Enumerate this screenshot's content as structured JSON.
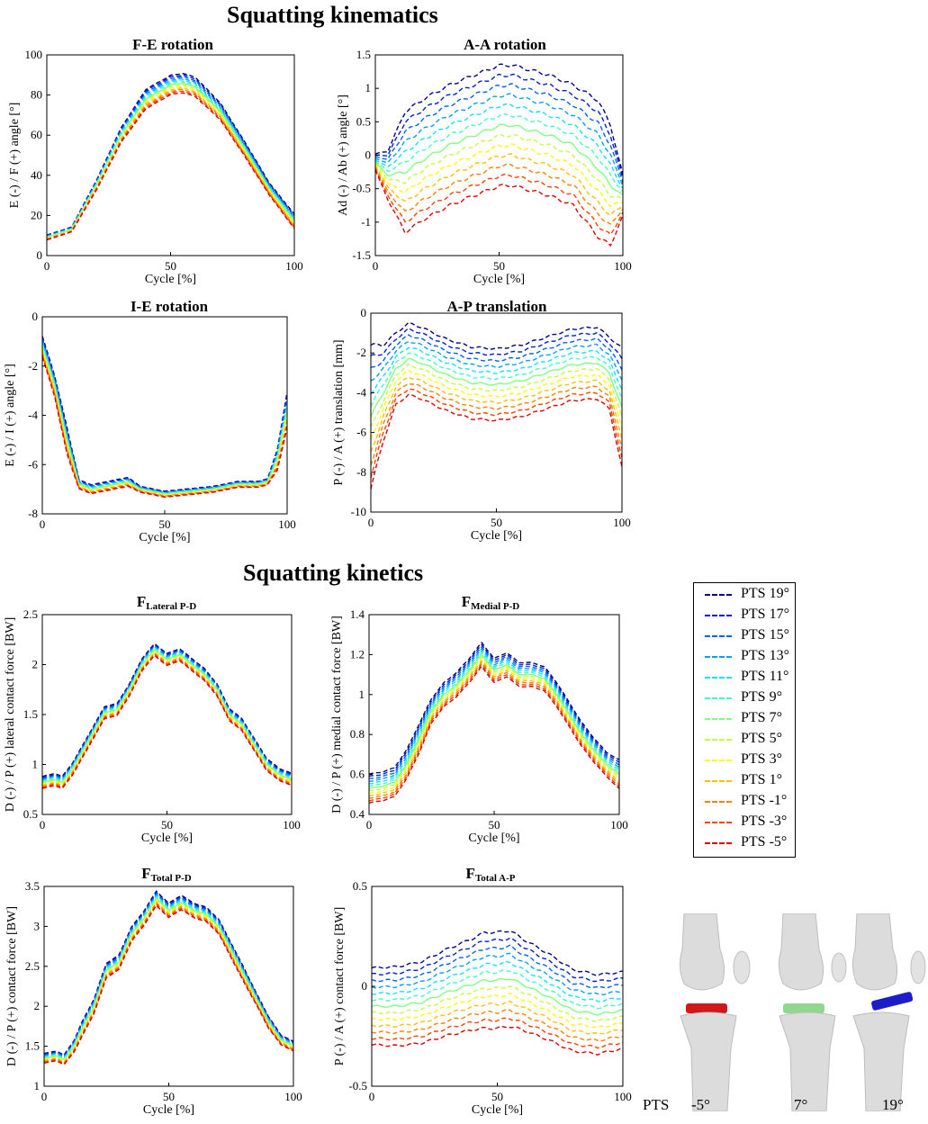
{
  "figure": {
    "kinematics_title": "Squatting kinematics",
    "kinetics_title": "Squatting kinetics"
  },
  "legend": {
    "entries": [
      {
        "label": "PTS 19°",
        "color": "#00008f"
      },
      {
        "label": "PTS 17°",
        "color": "#0020d0"
      },
      {
        "label": "PTS 15°",
        "color": "#0060ff"
      },
      {
        "label": "PTS 13°",
        "color": "#00a0ff"
      },
      {
        "label": "PTS 11°",
        "color": "#10e0ff"
      },
      {
        "label": "PTS 9°",
        "color": "#40ffc0"
      },
      {
        "label": "PTS 7°",
        "color": "#80ff80"
      },
      {
        "label": "PTS 5°",
        "color": "#c0ff40"
      },
      {
        "label": "PTS 3°",
        "color": "#ffff00"
      },
      {
        "label": "PTS 1°",
        "color": "#ffc000"
      },
      {
        "label": "PTS -1°",
        "color": "#ff8000"
      },
      {
        "label": "PTS -3°",
        "color": "#ff4000"
      },
      {
        "label": "PTS -5°",
        "color": "#e00000"
      }
    ]
  },
  "knees": {
    "pts_label": "PTS",
    "items": [
      {
        "angle": "-5°",
        "insert_color": "#d01818"
      },
      {
        "angle": "7°",
        "insert_color": "#90d890"
      },
      {
        "angle": "19°",
        "insert_color": "#1c1cc8"
      }
    ]
  },
  "chart_data": [
    {
      "id": "fe",
      "type": "line",
      "title": "F-E rotation",
      "xlabel": "Cycle [%]",
      "ylabel": "E (-) / F (+) angle [°]",
      "xlim": [
        0,
        100
      ],
      "ylim": [
        0,
        100
      ],
      "xticks": [
        0,
        50,
        100
      ],
      "yticks": [
        0,
        20,
        40,
        60,
        80,
        100
      ],
      "line_style": "dashed",
      "reference_series": "PTS 7° (solid)",
      "x": [
        0,
        10,
        20,
        30,
        40,
        50,
        55,
        60,
        70,
        80,
        90,
        100
      ],
      "base": [
        9,
        13,
        35,
        60,
        78,
        85,
        86,
        84,
        72,
        53,
        33,
        17
      ],
      "spread": [
        0.2,
        0.2,
        0.4,
        0.6,
        0.8,
        0.8,
        0.8,
        0.8,
        0.7,
        0.6,
        0.5,
        0.6
      ]
    },
    {
      "id": "aa",
      "type": "line",
      "title": "A-A rotation",
      "xlabel": "Cycle [%]",
      "ylabel": "Ad (-) / Ab (+) angle [°]",
      "xlim": [
        0,
        100
      ],
      "ylim": [
        -1.5,
        1.5
      ],
      "xticks": [
        0,
        50,
        100
      ],
      "yticks": [
        -1.5,
        -1,
        -0.5,
        0,
        0.5,
        1,
        1.5
      ],
      "line_style": "dashed",
      "reference_series": "PTS 7° (solid)",
      "x": [
        0,
        5,
        12,
        20,
        30,
        40,
        50,
        55,
        60,
        70,
        80,
        90,
        95,
        100
      ],
      "base": [
        -0.1,
        -0.3,
        -0.25,
        -0.05,
        0.15,
        0.3,
        0.44,
        0.45,
        0.4,
        0.3,
        0.15,
        -0.2,
        -0.45,
        -0.6
      ],
      "spread": [
        0.02,
        0.06,
        0.15,
        0.15,
        0.15,
        0.15,
        0.15,
        0.15,
        0.15,
        0.15,
        0.15,
        0.17,
        0.15,
        0.05
      ]
    },
    {
      "id": "ie",
      "type": "line",
      "title": "I-E rotation",
      "xlabel": "Cycle [%]",
      "ylabel": "E (-) / I (+) angle [°]",
      "xlim": [
        0,
        100
      ],
      "ylim": [
        -8,
        0
      ],
      "xticks": [
        0,
        50,
        100
      ],
      "yticks": [
        -8,
        -6,
        -4,
        -2,
        0
      ],
      "line_style": "dashed",
      "reference_series": "PTS 7° (solid)",
      "x": [
        0,
        5,
        10,
        15,
        20,
        30,
        35,
        40,
        50,
        60,
        70,
        80,
        88,
        92,
        96,
        100
      ],
      "base": [
        -1.2,
        -2.8,
        -5,
        -6.8,
        -7.0,
        -6.8,
        -6.7,
        -7.0,
        -7.2,
        -7.1,
        -7.0,
        -6.8,
        -6.8,
        -6.7,
        -5.8,
        -3.8
      ],
      "spread": [
        0.07,
        0.07,
        0.09,
        0.03,
        0.03,
        0.03,
        0.03,
        0.02,
        0.02,
        0.02,
        0.02,
        0.02,
        0.02,
        0.02,
        0.07,
        0.12
      ]
    },
    {
      "id": "ap",
      "type": "line",
      "title": "A-P translation",
      "xlabel": "Cycle [%]",
      "ylabel": "P (-) / A (+) translation [mm]",
      "xlim": [
        0,
        100
      ],
      "ylim": [
        -10,
        0
      ],
      "xticks": [
        0,
        50,
        100
      ],
      "yticks": [
        -10,
        -8,
        -6,
        -4,
        -2,
        0
      ],
      "line_style": "dashed",
      "reference_series": "PTS 7° (solid)",
      "x": [
        0,
        5,
        10,
        15,
        20,
        30,
        40,
        50,
        60,
        70,
        80,
        90,
        95,
        100
      ],
      "base": [
        -5.2,
        -4.0,
        -2.8,
        -2.3,
        -2.5,
        -3.1,
        -3.5,
        -3.6,
        -3.4,
        -3.0,
        -2.6,
        -2.5,
        -3.0,
        -4.8
      ],
      "spread": [
        0.6,
        0.4,
        0.3,
        0.3,
        0.3,
        0.3,
        0.3,
        0.3,
        0.3,
        0.3,
        0.3,
        0.3,
        0.3,
        0.5
      ]
    },
    {
      "id": "flat",
      "type": "line",
      "title": "F",
      "title_sub": "Lateral P-D",
      "xlabel": "Cycle [%]",
      "ylabel": "D (-) / P (+) lateral contact force [BW]",
      "xlim": [
        0,
        100
      ],
      "ylim": [
        0.5,
        2.5
      ],
      "xticks": [
        0,
        50,
        100
      ],
      "yticks": [
        0.5,
        1,
        1.5,
        2,
        2.5
      ],
      "line_style": "dashed",
      "reference_series": "PTS 7° (solid)",
      "x": [
        0,
        5,
        8,
        12,
        15,
        20,
        25,
        30,
        35,
        40,
        45,
        50,
        55,
        60,
        65,
        70,
        75,
        80,
        85,
        90,
        95,
        100
      ],
      "base": [
        0.82,
        0.85,
        0.82,
        0.95,
        1.08,
        1.3,
        1.52,
        1.55,
        1.75,
        2.0,
        2.15,
        2.05,
        2.1,
        2.0,
        1.9,
        1.75,
        1.5,
        1.4,
        1.2,
        1.0,
        0.9,
        0.85
      ],
      "spread": [
        0.01,
        0.01,
        0.01,
        0.01,
        0.01,
        0.01,
        0.01,
        0.01,
        0.01,
        0.01,
        0.01,
        0.01,
        0.01,
        0.01,
        0.01,
        0.01,
        0.01,
        0.01,
        0.01,
        0.01,
        0.01,
        0.01
      ]
    },
    {
      "id": "fmed",
      "type": "line",
      "title": "F",
      "title_sub": "Medial P-D",
      "xlabel": "Cycle [%]",
      "ylabel": "D (-) / P (+) medial contact force [BW]",
      "xlim": [
        0,
        100
      ],
      "ylim": [
        0.4,
        1.4
      ],
      "xticks": [
        0,
        50,
        100
      ],
      "yticks": [
        0.4,
        0.6,
        0.8,
        1,
        1.2,
        1.4
      ],
      "line_style": "dashed",
      "reference_series": "PTS 7° (solid)",
      "x": [
        0,
        5,
        10,
        15,
        20,
        25,
        30,
        35,
        40,
        45,
        50,
        55,
        60,
        65,
        70,
        75,
        80,
        85,
        90,
        95,
        100
      ],
      "base": [
        0.53,
        0.54,
        0.56,
        0.65,
        0.78,
        0.92,
        1.0,
        1.05,
        1.12,
        1.2,
        1.12,
        1.15,
        1.1,
        1.1,
        1.08,
        1.0,
        0.9,
        0.8,
        0.72,
        0.65,
        0.6
      ],
      "spread": [
        0.012,
        0.012,
        0.012,
        0.012,
        0.012,
        0.01,
        0.01,
        0.01,
        0.01,
        0.01,
        0.01,
        0.01,
        0.01,
        0.01,
        0.01,
        0.01,
        0.01,
        0.01,
        0.01,
        0.01,
        0.012
      ]
    },
    {
      "id": "ftot",
      "type": "line",
      "title": "F",
      "title_sub": "Total P-D",
      "xlabel": "Cycle [%]",
      "ylabel": "D (-) / P (+) contact force [BW]",
      "xlim": [
        0,
        100
      ],
      "ylim": [
        1,
        3.5
      ],
      "xticks": [
        0,
        50,
        100
      ],
      "yticks": [
        1,
        1.5,
        2,
        2.5,
        3,
        3.5
      ],
      "line_style": "dashed",
      "reference_series": "PTS 7° (solid)",
      "x": [
        0,
        5,
        8,
        12,
        15,
        20,
        25,
        30,
        35,
        40,
        45,
        50,
        55,
        60,
        65,
        70,
        75,
        80,
        85,
        90,
        95,
        100
      ],
      "base": [
        1.35,
        1.38,
        1.33,
        1.5,
        1.7,
        2.0,
        2.45,
        2.55,
        2.9,
        3.1,
        3.35,
        3.2,
        3.3,
        3.2,
        3.15,
        3.0,
        2.7,
        2.4,
        2.1,
        1.8,
        1.58,
        1.5
      ],
      "spread": [
        0.01,
        0.01,
        0.01,
        0.012,
        0.015,
        0.015,
        0.015,
        0.015,
        0.015,
        0.015,
        0.015,
        0.015,
        0.015,
        0.015,
        0.015,
        0.015,
        0.015,
        0.015,
        0.012,
        0.012,
        0.01,
        0.01
      ]
    },
    {
      "id": "fap",
      "type": "line",
      "title": "F",
      "title_sub": "Total A-P",
      "xlabel": "Cycle [%]",
      "ylabel": "P (-) / A (+) contact force [BW]",
      "xlim": [
        0,
        100
      ],
      "ylim": [
        -0.5,
        0.5
      ],
      "xticks": [
        0,
        50,
        100
      ],
      "yticks": [
        -0.5,
        0,
        0.5
      ],
      "line_style": "dashed",
      "reference_series": "PTS 7° (solid)",
      "x": [
        0,
        10,
        20,
        30,
        40,
        45,
        50,
        55,
        60,
        70,
        80,
        90,
        100
      ],
      "base": [
        -0.1,
        -0.1,
        -0.08,
        -0.03,
        0.01,
        0.03,
        0.03,
        0.04,
        0.01,
        -0.05,
        -0.12,
        -0.14,
        -0.12
      ],
      "spread": [
        0.032,
        0.033,
        0.034,
        0.036,
        0.038,
        0.04,
        0.04,
        0.04,
        0.038,
        0.036,
        0.034,
        0.033,
        0.032
      ]
    }
  ]
}
